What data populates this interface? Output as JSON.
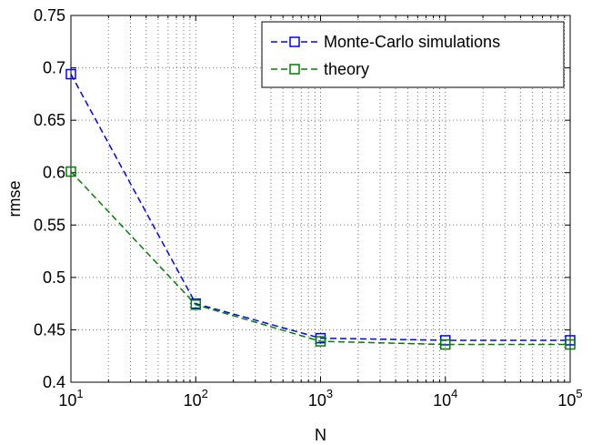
{
  "chart_data": {
    "type": "line",
    "xlabel": "N",
    "ylabel": "rmse",
    "x_scale": "log",
    "x": [
      10,
      100,
      1000,
      10000,
      100000
    ],
    "x_tick_exponents": [
      "1",
      "2",
      "3",
      "4",
      "5"
    ],
    "x_tick_base": "10",
    "xlim": [
      10,
      100000
    ],
    "ylim": [
      0.4,
      0.75
    ],
    "y_ticks": [
      "0.4",
      "0.45",
      "0.5",
      "0.55",
      "0.6",
      "0.65",
      "0.7",
      "0.75"
    ],
    "grid": true,
    "legend_position": "top-right",
    "series": [
      {
        "name": "Monte-Carlo simulations",
        "values": [
          0.694,
          0.475,
          0.442,
          0.44,
          0.44
        ],
        "color": "#0000ff",
        "marker": "square",
        "line_style": "dashed"
      },
      {
        "name": "theory",
        "values": [
          0.601,
          0.474,
          0.439,
          0.436,
          0.436
        ],
        "color": "#008000",
        "marker": "square",
        "line_style": "dashed"
      }
    ]
  }
}
